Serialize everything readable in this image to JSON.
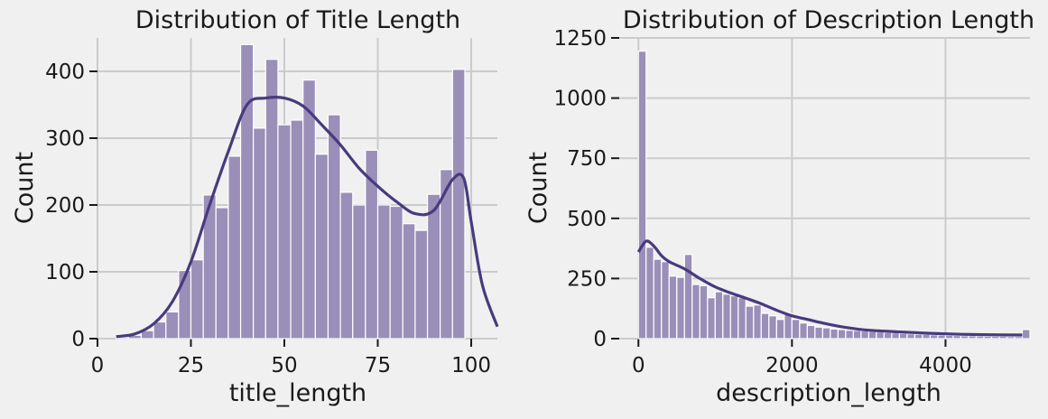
{
  "chart_data": [
    {
      "type": "histogram",
      "title": "Distribution of Title Length",
      "xlabel": "title_length",
      "ylabel": "Count",
      "xlim": [
        0,
        107
      ],
      "ylim": [
        0,
        450
      ],
      "xticks": [
        0,
        25,
        50,
        75,
        100
      ],
      "yticks": [
        0,
        100,
        200,
        300,
        400
      ],
      "bar_color": "#9a8fb8",
      "kde_color": "#483a7e",
      "grid": true,
      "bins": [
        {
          "x0": 5.0,
          "x1": 8.3,
          "count": 2
        },
        {
          "x0": 8.3,
          "x1": 11.7,
          "count": 5
        },
        {
          "x0": 11.7,
          "x1": 15.0,
          "count": 12
        },
        {
          "x0": 15.0,
          "x1": 18.3,
          "count": 25
        },
        {
          "x0": 18.3,
          "x1": 21.7,
          "count": 40
        },
        {
          "x0": 21.7,
          "x1": 25.0,
          "count": 102
        },
        {
          "x0": 25.0,
          "x1": 28.3,
          "count": 118
        },
        {
          "x0": 28.3,
          "x1": 31.7,
          "count": 215
        },
        {
          "x0": 31.7,
          "x1": 35.0,
          "count": 196
        },
        {
          "x0": 35.0,
          "x1": 38.3,
          "count": 273
        },
        {
          "x0": 38.3,
          "x1": 41.7,
          "count": 440
        },
        {
          "x0": 41.7,
          "x1": 45.0,
          "count": 315
        },
        {
          "x0": 45.0,
          "x1": 48.3,
          "count": 418
        },
        {
          "x0": 48.3,
          "x1": 51.7,
          "count": 320
        },
        {
          "x0": 51.7,
          "x1": 55.0,
          "count": 327
        },
        {
          "x0": 55.0,
          "x1": 58.3,
          "count": 387
        },
        {
          "x0": 58.3,
          "x1": 61.7,
          "count": 276
        },
        {
          "x0": 61.7,
          "x1": 65.0,
          "count": 335
        },
        {
          "x0": 65.0,
          "x1": 68.3,
          "count": 219
        },
        {
          "x0": 68.3,
          "x1": 71.7,
          "count": 200
        },
        {
          "x0": 71.7,
          "x1": 75.0,
          "count": 282
        },
        {
          "x0": 75.0,
          "x1": 78.3,
          "count": 200
        },
        {
          "x0": 78.3,
          "x1": 81.7,
          "count": 198
        },
        {
          "x0": 81.7,
          "x1": 85.0,
          "count": 172
        },
        {
          "x0": 85.0,
          "x1": 88.3,
          "count": 162
        },
        {
          "x0": 88.3,
          "x1": 91.7,
          "count": 216
        },
        {
          "x0": 91.7,
          "x1": 95.0,
          "count": 253
        },
        {
          "x0": 95.0,
          "x1": 98.3,
          "count": 403
        }
      ],
      "kde": {
        "x": [
          5,
          10,
          15,
          20,
          25,
          30,
          35,
          40,
          45,
          50,
          55,
          60,
          65,
          70,
          75,
          80,
          85,
          90,
          95,
          98,
          100,
          103,
          107
        ],
        "y": [
          3,
          7,
          22,
          55,
          115,
          200,
          280,
          350,
          360,
          360,
          348,
          320,
          290,
          255,
          228,
          205,
          187,
          192,
          238,
          240,
          175,
          80,
          18
        ]
      }
    },
    {
      "type": "histogram",
      "title": "Distribution of Description Length",
      "xlabel": "description_length",
      "ylabel": "Count",
      "xlim": [
        -250,
        5100
      ],
      "ylim": [
        0,
        1250
      ],
      "xticks": [
        0,
        2000,
        4000
      ],
      "yticks": [
        0,
        250,
        500,
        750,
        1000,
        1250
      ],
      "bar_color": "#9a8fb8",
      "kde_color": "#483a7e",
      "grid": true,
      "bin_start": 0,
      "bin_width": 100,
      "counts": [
        1195,
        380,
        330,
        320,
        260,
        255,
        350,
        225,
        220,
        170,
        195,
        185,
        178,
        170,
        135,
        140,
        105,
        95,
        80,
        105,
        80,
        65,
        55,
        48,
        45,
        40,
        38,
        35,
        34,
        32,
        30,
        28,
        26,
        24,
        22,
        20,
        18,
        18,
        16,
        15,
        14,
        13,
        12,
        12,
        11,
        10,
        10,
        10,
        9,
        9,
        38
      ],
      "kde": {
        "x": [
          0,
          100,
          200,
          300,
          400,
          600,
          800,
          1000,
          1200,
          1400,
          1600,
          1800,
          2000,
          2200,
          2400,
          2600,
          2800,
          3000,
          3400,
          3800,
          4200,
          4600,
          5000
        ],
        "y": [
          360,
          405,
          385,
          345,
          320,
          290,
          250,
          215,
          190,
          168,
          145,
          118,
          95,
          80,
          65,
          52,
          42,
          35,
          28,
          22,
          18,
          16,
          15
        ]
      }
    }
  ]
}
